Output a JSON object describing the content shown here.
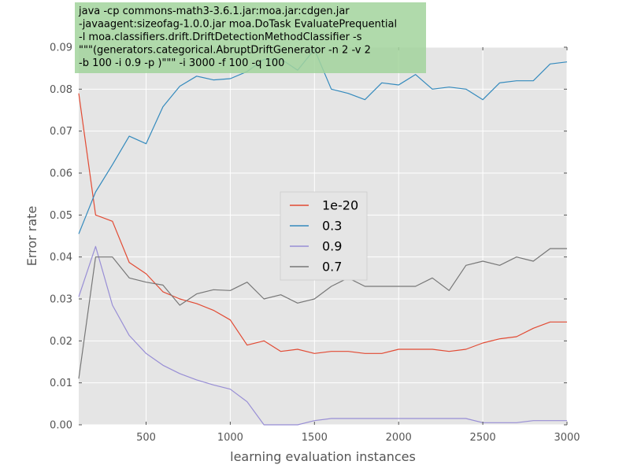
{
  "chart_data": {
    "type": "line",
    "xlabel": "learning evaluation instances",
    "ylabel": "Error rate",
    "xlim": [
      100,
      3000
    ],
    "ylim": [
      0,
      0.09
    ],
    "x_ticks": [
      500,
      1000,
      1500,
      2000,
      2500,
      3000
    ],
    "y_ticks": [
      0.0,
      0.01,
      0.02,
      0.03,
      0.04,
      0.05,
      0.06,
      0.07,
      0.08,
      0.09
    ],
    "x_tick_labels": [
      "500",
      "1000",
      "1500",
      "2000",
      "2500",
      "3000"
    ],
    "y_tick_labels": [
      "0.00",
      "0.01",
      "0.02",
      "0.03",
      "0.04",
      "0.05",
      "0.06",
      "0.07",
      "0.08",
      "0.09"
    ],
    "grid": true,
    "legend_position": "center",
    "annotation_lines": [
      "java -cp commons-math3-3.6.1.jar:moa.jar:cdgen.jar",
      "-javaagent:sizeofag-1.0.0.jar moa.DoTask EvaluatePrequential",
      "-l moa.classifiers.drift.DriftDetectionMethodClassifier  -s",
      "\"\"\"(generators.categorical.AbruptDriftGenerator  -n 2 -v 2",
      "-b 100  -i 0.9  -p  )\"\"\"   -i 3000  -f 100 -q 100"
    ],
    "x": [
      100,
      200,
      300,
      400,
      500,
      600,
      700,
      800,
      900,
      1000,
      1100,
      1200,
      1300,
      1400,
      1500,
      1600,
      1700,
      1800,
      1900,
      2000,
      2100,
      2200,
      2300,
      2400,
      2500,
      2600,
      2700,
      2800,
      2900,
      3000
    ],
    "series": [
      {
        "name": "1e-20",
        "color": "#e24a33",
        "values": [
          0.079,
          0.05,
          0.0485,
          0.0387,
          0.036,
          0.0317,
          0.03,
          0.0289,
          0.0273,
          0.025,
          0.019,
          0.02,
          0.0175,
          0.018,
          0.017,
          0.0175,
          0.0175,
          0.017,
          0.017,
          0.018,
          0.018,
          0.018,
          0.0175,
          0.018,
          0.0195,
          0.0205,
          0.021,
          0.023,
          0.0245,
          0.0245
        ]
      },
      {
        "name": "0.3",
        "color": "#348abd",
        "values": [
          0.0455,
          0.0555,
          0.062,
          0.0688,
          0.067,
          0.0758,
          0.0807,
          0.0831,
          0.0822,
          0.0825,
          0.0842,
          0.0871,
          0.0872,
          0.0845,
          0.0895,
          0.08,
          0.079,
          0.0775,
          0.0815,
          0.081,
          0.0835,
          0.08,
          0.0805,
          0.08,
          0.0775,
          0.0815,
          0.082,
          0.082,
          0.086,
          0.0865
        ]
      },
      {
        "name": "0.9",
        "color": "#988ed5",
        "values": [
          0.0305,
          0.0425,
          0.0285,
          0.0213,
          0.017,
          0.0142,
          0.0122,
          0.0107,
          0.0095,
          0.0085,
          0.0055,
          0.0,
          0.0,
          0.0,
          0.001,
          0.0015,
          0.0015,
          0.0015,
          0.0015,
          0.0015,
          0.0015,
          0.0015,
          0.0015,
          0.0015,
          0.0005,
          0.0005,
          0.0005,
          0.001,
          0.001,
          0.001
        ]
      },
      {
        "name": "0.7",
        "color": "#777777",
        "values": [
          0.011,
          0.04,
          0.04,
          0.035,
          0.034,
          0.0333,
          0.0285,
          0.0312,
          0.0322,
          0.032,
          0.034,
          0.03,
          0.031,
          0.029,
          0.03,
          0.033,
          0.035,
          0.033,
          0.033,
          0.033,
          0.033,
          0.035,
          0.032,
          0.038,
          0.039,
          0.038,
          0.04,
          0.039,
          0.042,
          0.042
        ]
      }
    ]
  }
}
